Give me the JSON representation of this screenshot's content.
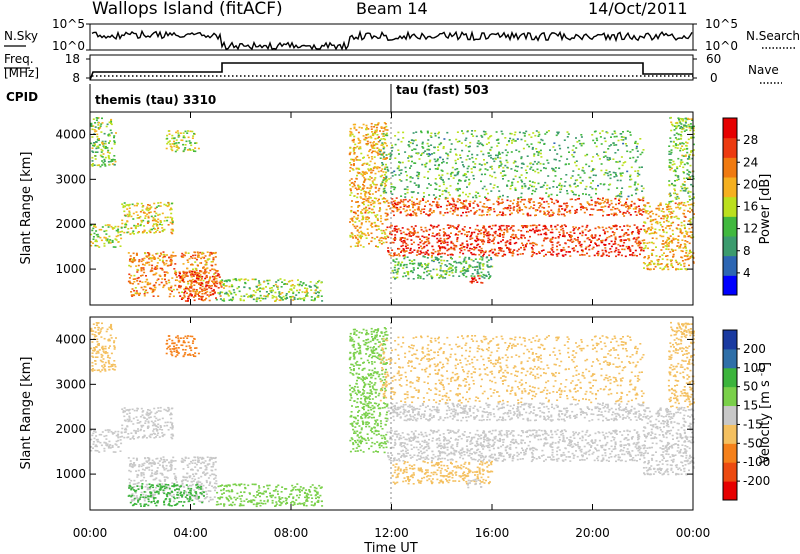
{
  "header": {
    "site": "Wallops Island (fitACF)",
    "beam": "Beam 14",
    "date": "14/Oct/2011"
  },
  "noise_panel": {
    "left_label": "N.Sky",
    "right_label": "N.Search",
    "left_ticks": [
      "10^5",
      "10^0"
    ],
    "right_ticks": [
      "10^5",
      "10^0"
    ]
  },
  "freq_panel": {
    "left_label_1": "Freq.",
    "left_label_2": "[MHz]",
    "right_label": "Nave",
    "left_ticks": [
      "18",
      "8"
    ],
    "right_ticks": [
      "60",
      "0"
    ]
  },
  "cpid": {
    "label": "CPID",
    "mode_1": "themis (tau) 3310",
    "mode_2": "tau (fast) 503"
  },
  "colors": {
    "power_scale": [
      "#0000ff",
      "#2d66b3",
      "#3c9b6e",
      "#41b83e",
      "#bbe01e",
      "#f5b020",
      "#f07a10",
      "#ec3a10",
      "#e60000"
    ],
    "velocity_scale": [
      "#e60000",
      "#ec4a10",
      "#f5801a",
      "#f4c060",
      "#c8c8c8",
      "#7ad04a",
      "#3cb43c",
      "#2f6fa8",
      "#1a3aa0"
    ]
  },
  "chart_data": [
    {
      "type": "heatmap",
      "title": "",
      "xlabel": "",
      "ylabel": "Slant Range [km]",
      "xlim": [
        0,
        24
      ],
      "ylim": [
        200,
        4500
      ],
      "y_ticks": [
        "1000",
        "2000",
        "3000",
        "4000"
      ],
      "colorbar": {
        "label": "Power [dB]",
        "range": [
          0,
          32
        ],
        "ticks": [
          "4",
          "8",
          "12",
          "16",
          "20",
          "24",
          "28"
        ]
      },
      "echo_regions": [
        {
          "t0": 0.0,
          "t1": 1.2,
          "r0": 1500,
          "r1": 2000,
          "value": 16
        },
        {
          "t0": 0.0,
          "t1": 1.0,
          "r0": 3300,
          "r1": 4400,
          "value": 14
        },
        {
          "t0": 1.2,
          "t1": 3.3,
          "r0": 1800,
          "r1": 2500,
          "value": 18
        },
        {
          "t0": 3.0,
          "t1": 4.3,
          "r0": 3600,
          "r1": 4100,
          "value": 16
        },
        {
          "t0": 1.5,
          "t1": 5.0,
          "r0": 400,
          "r1": 1400,
          "value": 22
        },
        {
          "t0": 3.5,
          "t1": 5.2,
          "r0": 300,
          "r1": 1000,
          "value": 26
        },
        {
          "t0": 5.0,
          "t1": 9.2,
          "r0": 300,
          "r1": 800,
          "value": 14
        },
        {
          "t0": 10.3,
          "t1": 11.8,
          "r0": 1500,
          "r1": 4300,
          "value": 20
        },
        {
          "t0": 11.8,
          "t1": 22.0,
          "r0": 2200,
          "r1": 2600,
          "value": 25
        },
        {
          "t0": 11.8,
          "t1": 22.0,
          "r0": 1300,
          "r1": 2000,
          "value": 27
        },
        {
          "t0": 11.5,
          "t1": 22.0,
          "r0": 2600,
          "r1": 4100,
          "value": 12
        },
        {
          "t0": 12.0,
          "t1": 16.0,
          "r0": 800,
          "r1": 1300,
          "value": 12
        },
        {
          "t0": 15.0,
          "t1": 15.6,
          "r0": 700,
          "r1": 900,
          "value": 28
        },
        {
          "t0": 22.0,
          "t1": 24.0,
          "r0": 1000,
          "r1": 2500,
          "value": 20
        },
        {
          "t0": 23.0,
          "t1": 24.0,
          "r0": 2500,
          "r1": 4400,
          "value": 14
        }
      ]
    },
    {
      "type": "heatmap",
      "title": "",
      "xlabel": "Time UT",
      "ylabel": "Slant Range [km]",
      "xlim": [
        0,
        24
      ],
      "ylim": [
        200,
        4500
      ],
      "x_ticks": [
        "00:00",
        "04:00",
        "08:00",
        "12:00",
        "16:00",
        "20:00",
        "00:00"
      ],
      "y_ticks": [
        "1000",
        "2000",
        "3000",
        "4000"
      ],
      "colorbar": {
        "label": "Velocity [m s^-1]",
        "ticks": [
          "200",
          "100",
          "50",
          "15",
          "-15",
          "-50",
          "-100",
          "-200"
        ]
      },
      "echo_regions": [
        {
          "t0": 0.0,
          "t1": 1.2,
          "r0": 1500,
          "r1": 2000,
          "value": 0
        },
        {
          "t0": 0.0,
          "t1": 1.0,
          "r0": 3300,
          "r1": 4400,
          "value": -40
        },
        {
          "t0": 1.2,
          "t1": 3.3,
          "r0": 1800,
          "r1": 2500,
          "value": 0
        },
        {
          "t0": 3.0,
          "t1": 4.3,
          "r0": 3600,
          "r1": 4100,
          "value": -60
        },
        {
          "t0": 1.5,
          "t1": 5.0,
          "r0": 400,
          "r1": 1400,
          "value": 0
        },
        {
          "t0": 1.5,
          "t1": 4.5,
          "r0": 300,
          "r1": 800,
          "value": 60
        },
        {
          "t0": 5.0,
          "t1": 9.2,
          "r0": 300,
          "r1": 800,
          "value": 40
        },
        {
          "t0": 10.3,
          "t1": 11.8,
          "r0": 1500,
          "r1": 4300,
          "value": 30
        },
        {
          "t0": 11.8,
          "t1": 22.0,
          "r0": 2200,
          "r1": 2600,
          "value": 0
        },
        {
          "t0": 11.8,
          "t1": 22.0,
          "r0": 1300,
          "r1": 2000,
          "value": 0
        },
        {
          "t0": 11.5,
          "t1": 22.0,
          "r0": 2600,
          "r1": 4100,
          "value": -30
        },
        {
          "t0": 12.0,
          "t1": 16.0,
          "r0": 800,
          "r1": 1300,
          "value": -40
        },
        {
          "t0": 15.0,
          "t1": 15.6,
          "r0": 700,
          "r1": 900,
          "value": 0
        },
        {
          "t0": 22.0,
          "t1": 24.0,
          "r0": 1000,
          "r1": 2500,
          "value": 0
        },
        {
          "t0": 23.0,
          "t1": 24.0,
          "r0": 2500,
          "r1": 4400,
          "value": -40
        }
      ]
    }
  ]
}
